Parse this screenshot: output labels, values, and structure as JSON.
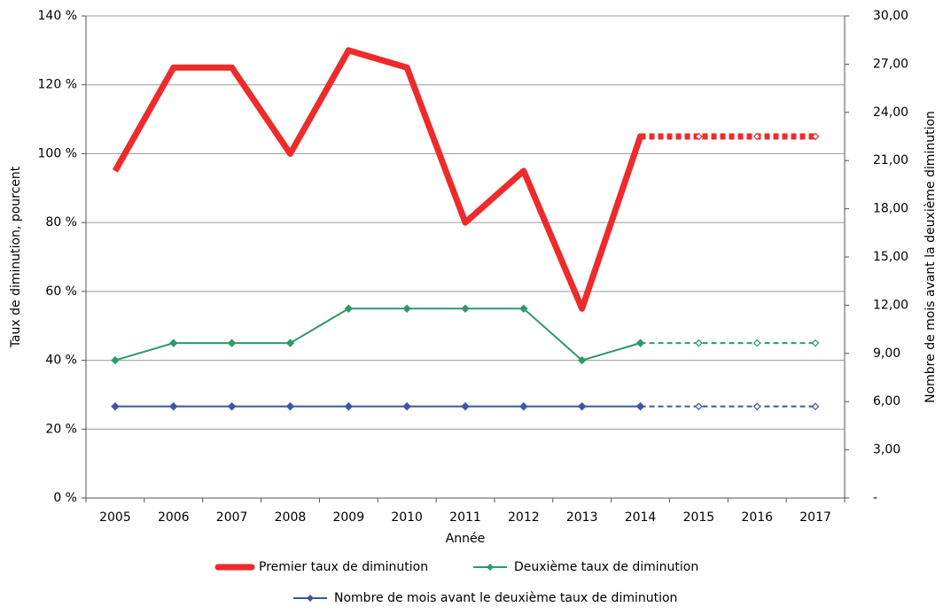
{
  "chart_data": {
    "type": "line",
    "x_label": "Année",
    "y_label": "Taux de diminution, pourcent",
    "y2_label": "Nombre de mois avant la deuxième diminution",
    "categories": [
      "2005",
      "2006",
      "2007",
      "2008",
      "2009",
      "2010",
      "2011",
      "2012",
      "2013",
      "2014",
      "2015",
      "2016",
      "2017"
    ],
    "projection_start": 9,
    "series": [
      {
        "name": "Premier taux de diminution",
        "color": "#ee2a2a",
        "width": 7,
        "markers": false,
        "values": [
          95,
          125,
          125,
          100,
          130,
          125,
          80,
          95,
          55,
          105,
          105,
          105,
          105
        ]
      },
      {
        "name": "Deuxième taux de diminution",
        "color": "#2e9a6a",
        "width": 2,
        "markers": true,
        "values": [
          40,
          45,
          45,
          45,
          55,
          55,
          55,
          55,
          40,
          45,
          45,
          45,
          45
        ]
      },
      {
        "name": "Nombre de mois avant le deuxième taux de diminution",
        "color": "#3c55a5",
        "width": 2,
        "markers": true,
        "axis": "y2",
        "values": [
          5.7,
          5.7,
          5.7,
          5.7,
          5.7,
          5.7,
          5.7,
          5.7,
          5.7,
          5.7,
          5.7,
          5.7,
          5.7
        ]
      }
    ],
    "ylim": [
      0,
      140
    ],
    "yticks": [
      {
        "value": 0,
        "label": "0 %"
      },
      {
        "value": 20,
        "label": "20 %"
      },
      {
        "value": 40,
        "label": "40 %"
      },
      {
        "value": 60,
        "label": "60 %"
      },
      {
        "value": 80,
        "label": "80 %"
      },
      {
        "value": 100,
        "label": "100 %"
      },
      {
        "value": 120,
        "label": "120 %"
      },
      {
        "value": 140,
        "label": "140 %"
      }
    ],
    "y2lim": [
      0,
      30
    ],
    "y2ticks": [
      {
        "value": 0,
        "label": "-"
      },
      {
        "value": 3,
        "label": "3,00"
      },
      {
        "value": 6,
        "label": "6,00"
      },
      {
        "value": 9,
        "label": "9,00"
      },
      {
        "value": 12,
        "label": "12,00"
      },
      {
        "value": 15,
        "label": "15,00"
      },
      {
        "value": 18,
        "label": "18,00"
      },
      {
        "value": 21,
        "label": "21,00"
      },
      {
        "value": 24,
        "label": "24,00"
      },
      {
        "value": 27,
        "label": "27,00"
      },
      {
        "value": 30,
        "label": "30,00"
      }
    ],
    "grid": true
  }
}
